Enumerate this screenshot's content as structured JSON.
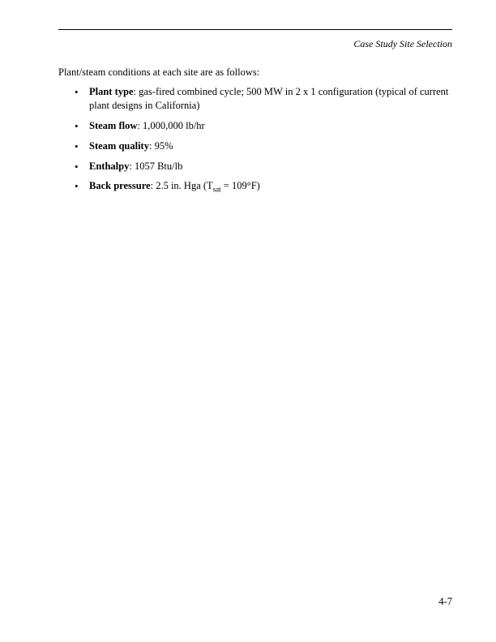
{
  "header": {
    "section_title": "Case Study Site Selection"
  },
  "content": {
    "intro": "Plant/steam conditions at each site are as follows:",
    "items": [
      {
        "label": "Plant type",
        "text": ": gas-fired combined cycle; 500 MW in 2 x 1 configuration (typical of current plant designs in California)"
      },
      {
        "label": "Steam flow",
        "text": ": 1,000,000 lb/hr"
      },
      {
        "label": "Steam quality",
        "text": ": 95%"
      },
      {
        "label": "Enthalpy",
        "text": ": 1057 Btu/lb"
      },
      {
        "label": "Back pressure",
        "text_before_sub": ": 2.5 in. Hga (T",
        "sub": "sat",
        "text_after_sub": " = 109°F)"
      }
    ]
  },
  "footer": {
    "page_number": "4-7"
  }
}
